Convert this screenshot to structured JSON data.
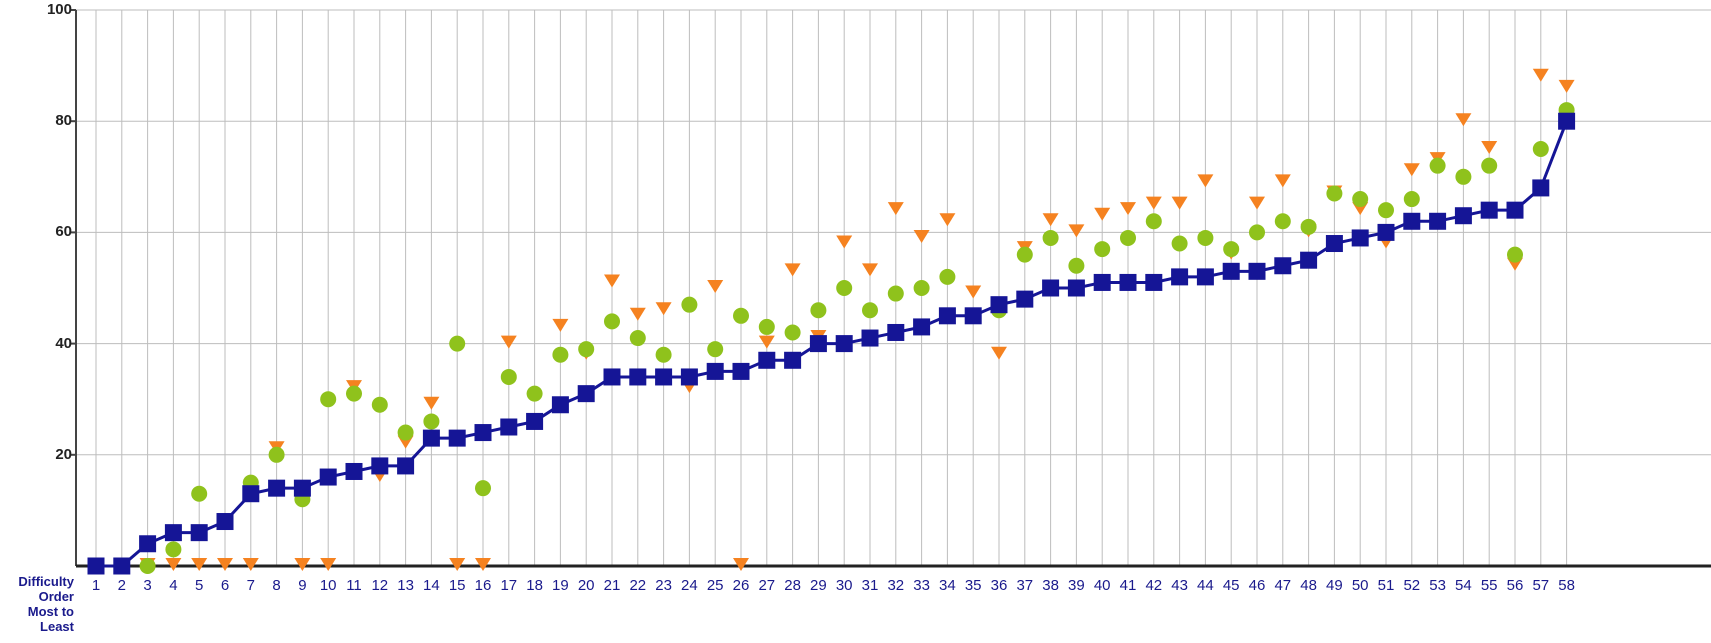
{
  "chart_data": {
    "type": "line",
    "title": "",
    "xlabel": "",
    "ylabel": "",
    "ylim": [
      0,
      100
    ],
    "yticks": [
      20,
      40,
      60,
      80,
      100
    ],
    "grid": true,
    "x_axis_caption": [
      "Difficulty",
      "Order",
      "Most to",
      "Least"
    ],
    "categories": [
      1,
      2,
      3,
      4,
      5,
      6,
      7,
      8,
      9,
      10,
      11,
      12,
      13,
      14,
      15,
      16,
      17,
      18,
      19,
      20,
      21,
      22,
      23,
      24,
      25,
      26,
      27,
      28,
      29,
      30,
      31,
      32,
      33,
      34,
      35,
      36,
      37,
      38,
      39,
      40,
      41,
      42,
      43,
      44,
      45,
      46,
      47,
      48,
      49,
      50,
      51,
      52,
      53,
      54,
      55,
      56,
      57,
      58
    ],
    "series": [
      {
        "name": "",
        "marker": "square",
        "connected": true,
        "color": "#151596",
        "values": [
          0,
          0,
          4,
          6,
          6,
          8,
          13,
          14,
          14,
          16,
          17,
          18,
          18,
          23,
          23,
          24,
          25,
          26,
          29,
          31,
          34,
          34,
          34,
          34,
          35,
          35,
          37,
          37,
          40,
          40,
          41,
          42,
          43,
          45,
          45,
          47,
          48,
          50,
          50,
          51,
          51,
          51,
          52,
          52,
          53,
          53,
          54,
          55,
          58,
          59,
          60,
          62,
          62,
          63,
          64,
          64,
          68,
          80
        ]
      },
      {
        "name": "",
        "marker": "circle",
        "connected": false,
        "color": "#8fc21c",
        "values": [
          0,
          0,
          0,
          3,
          13,
          8,
          15,
          20,
          12,
          30,
          31,
          29,
          24,
          26,
          40,
          14,
          34,
          31,
          38,
          39,
          44,
          41,
          38,
          47,
          39,
          45,
          43,
          42,
          46,
          50,
          46,
          49,
          50,
          52,
          45,
          46,
          56,
          59,
          54,
          57,
          59,
          62,
          58,
          59,
          57,
          60,
          62,
          61,
          67,
          66,
          64,
          66,
          72,
          70,
          72,
          56,
          75,
          82
        ]
      },
      {
        "name": "",
        "marker": "triangle-down",
        "connected": false,
        "color": "#f58220",
        "values": [
          0,
          0,
          0,
          0,
          0,
          0,
          0,
          21,
          0,
          0,
          32,
          16,
          22,
          29,
          0,
          0,
          40,
          26,
          43,
          38,
          51,
          45,
          46,
          32,
          50,
          0,
          40,
          53,
          41,
          58,
          53,
          64,
          59,
          62,
          49,
          38,
          57,
          62,
          60,
          63,
          64,
          65,
          65,
          69,
          56,
          65,
          69,
          60,
          67,
          64,
          58,
          71,
          73,
          80,
          75,
          54,
          88,
          86
        ]
      }
    ]
  }
}
